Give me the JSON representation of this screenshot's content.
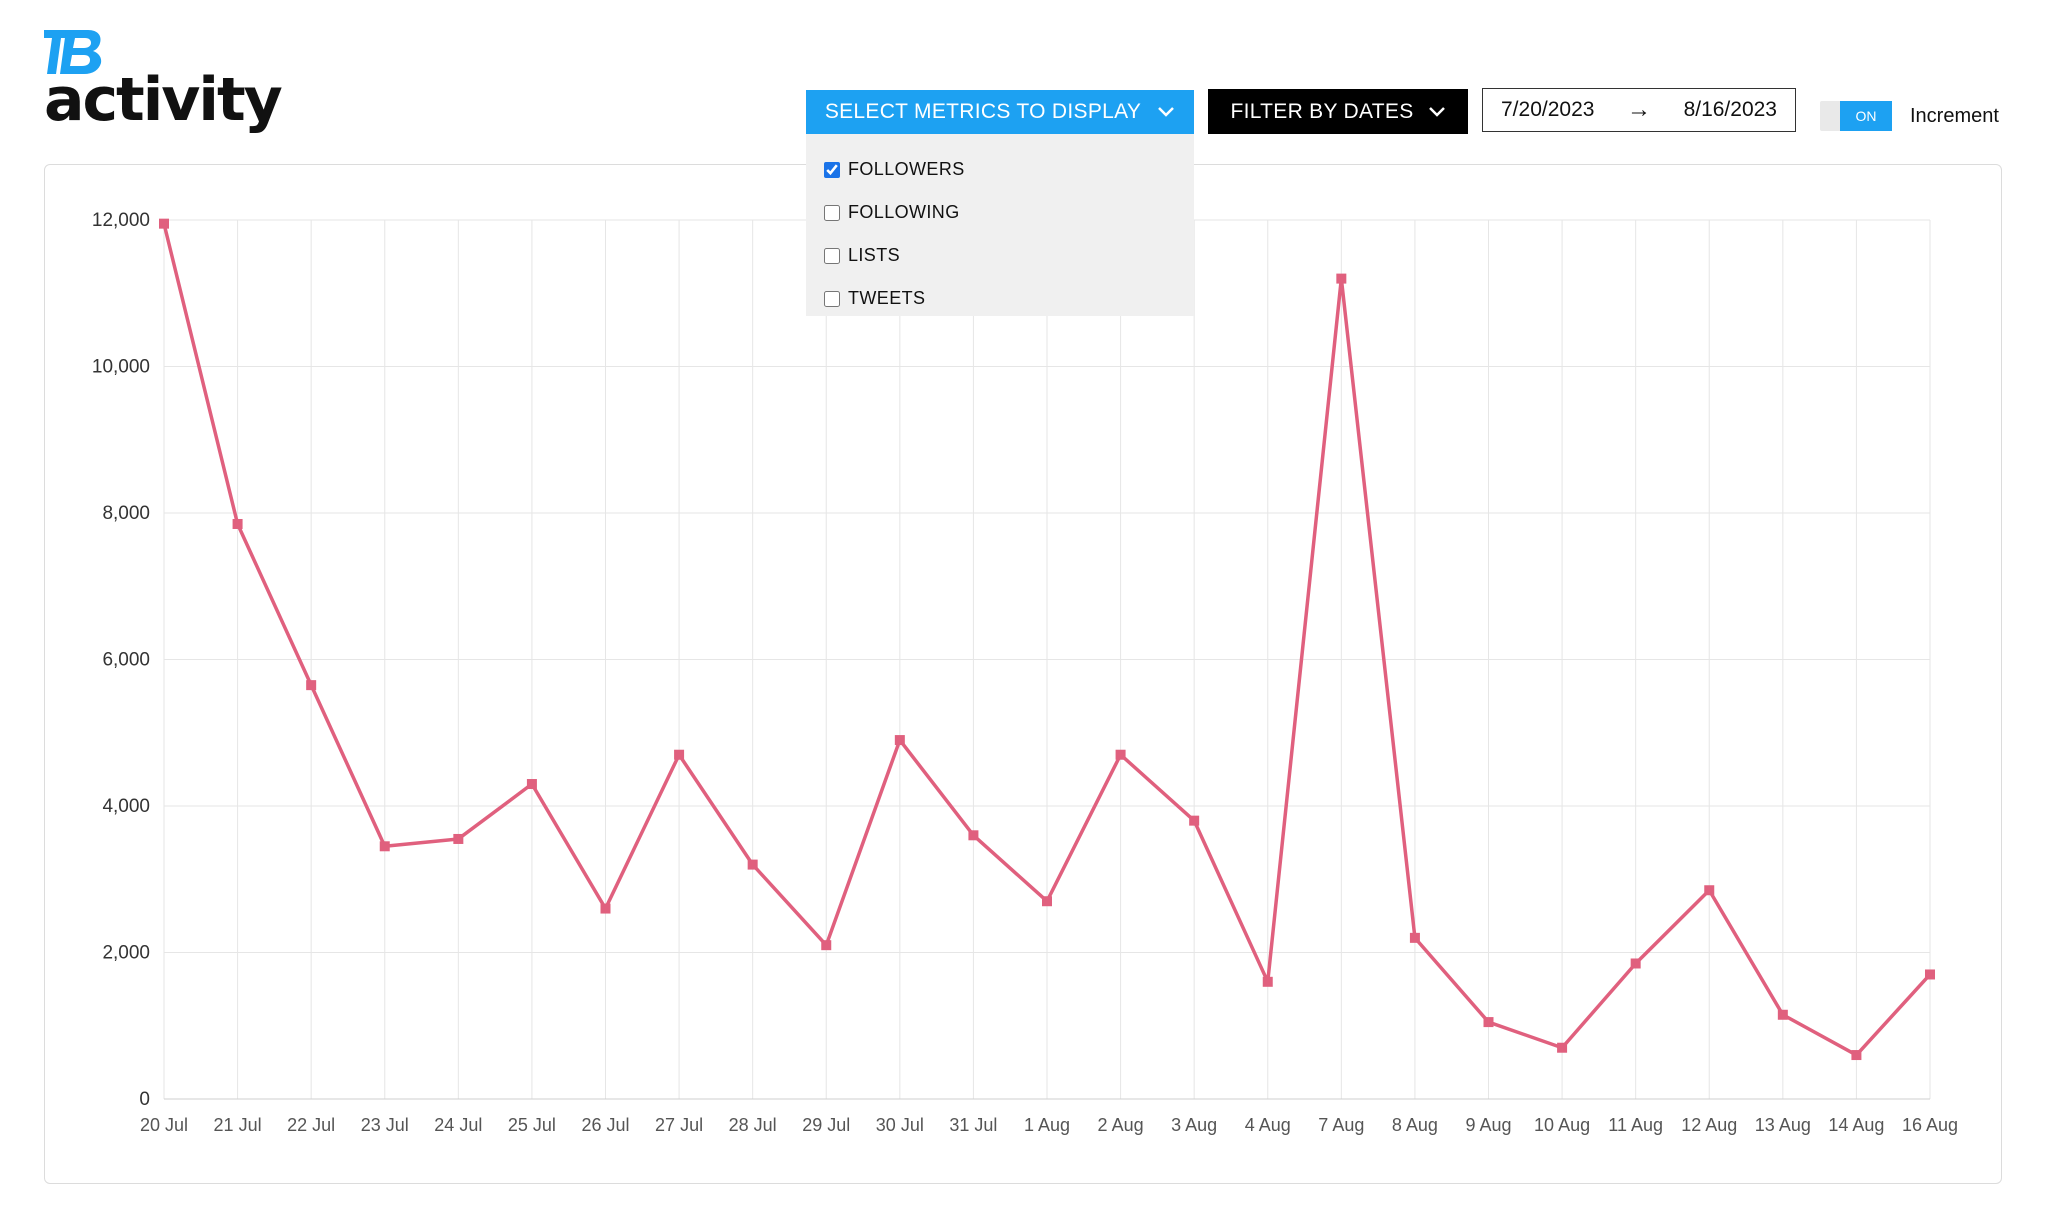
{
  "header": {
    "logo_icon": "tb-logo-icon",
    "logo_color": "#1da1f2",
    "title": "activity"
  },
  "controls": {
    "metrics_button": "SELECT METRICS TO DISPLAY",
    "filter_button": "FILTER BY DATES",
    "date_start": "7/20/2023",
    "date_arrow": "→",
    "date_end": "8/16/2023",
    "toggle_label": "ON",
    "toggle_state": "on",
    "increment_label": "Increment",
    "accent_color": "#1da1f2"
  },
  "metrics_dropdown": {
    "open": true,
    "options": [
      {
        "label": "FOLLOWERS",
        "checked": true
      },
      {
        "label": "FOLLOWING",
        "checked": false
      },
      {
        "label": "LISTS",
        "checked": false
      },
      {
        "label": "TWEETS",
        "checked": false
      }
    ]
  },
  "chart_data": {
    "type": "line",
    "title": "",
    "xlabel": "",
    "ylabel": "",
    "ylim": [
      0,
      12000
    ],
    "yticks": [
      "0",
      "2,000",
      "4,000",
      "6,000",
      "8,000",
      "10,000",
      "12,000"
    ],
    "ytick_values": [
      0,
      2000,
      4000,
      6000,
      8000,
      10000,
      12000
    ],
    "grid": true,
    "legend": "none",
    "categories": [
      "20 Jul",
      "21 Jul",
      "22 Jul",
      "23 Jul",
      "24 Jul",
      "25 Jul",
      "26 Jul",
      "27 Jul",
      "28 Jul",
      "29 Jul",
      "30 Jul",
      "31 Jul",
      "1 Aug",
      "2 Aug",
      "3 Aug",
      "4 Aug",
      "7 Aug",
      "8 Aug",
      "9 Aug",
      "10 Aug",
      "11 Aug",
      "12 Aug",
      "13 Aug",
      "14 Aug",
      "16 Aug"
    ],
    "series": [
      {
        "color": "#e0607e",
        "values": [
          11950,
          7850,
          5650,
          3450,
          3550,
          4300,
          2600,
          4700,
          3200,
          2100,
          4900,
          3600,
          2700,
          4700,
          3800,
          1600,
          11200,
          2200,
          1050,
          700,
          1850,
          2850,
          1150,
          600,
          1700
        ]
      }
    ]
  }
}
